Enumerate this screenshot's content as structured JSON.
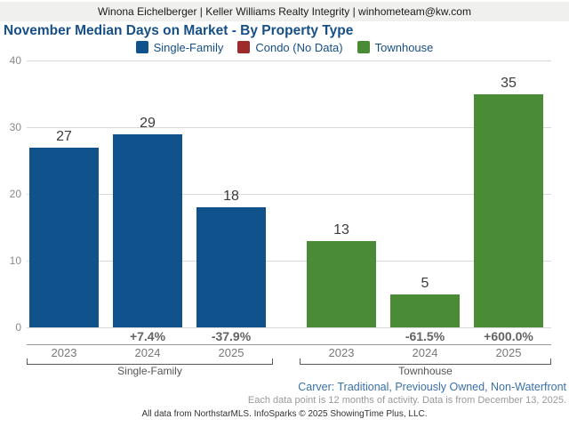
{
  "header": {
    "contact": "Winona Eichelberger | Keller Williams Realty Integrity | winhometeam@kw.com"
  },
  "chart_data": {
    "type": "bar",
    "title": "November Median Days on Market - By Property Type",
    "ylabel": "",
    "xlabel": "",
    "ylim": [
      0,
      40
    ],
    "yticks": [
      0,
      10,
      20,
      30,
      40
    ],
    "grid": true,
    "legend_position": "top-center",
    "legend": [
      {
        "label": "Single-Family",
        "color": "#0f528c"
      },
      {
        "label": "Condo (No Data)",
        "color": "#9e2a2b"
      },
      {
        "label": "Townhouse",
        "color": "#4a8c35"
      }
    ],
    "groups": [
      {
        "name": "Single-Family",
        "color": "#0f528c",
        "categories": [
          "2023",
          "2024",
          "2025"
        ],
        "values": [
          27,
          29,
          18
        ],
        "pct_change": [
          "",
          "+7.4%",
          "-37.9%"
        ]
      },
      {
        "name": "Townhouse",
        "color": "#4a8c35",
        "categories": [
          "2023",
          "2024",
          "2025"
        ],
        "values": [
          13,
          5,
          35
        ],
        "pct_change": [
          "",
          "-61.5%",
          "+600.0%"
        ]
      }
    ]
  },
  "footer": {
    "filters": "Carver: Traditional, Previously Owned, Non-Waterfront",
    "data_note": "Each data point is 12 months of activity. Data is from December 13, 2025.",
    "attribution": "All data from NorthstarMLS. InfoSparks © 2025 ShowingTime Plus, LLC."
  }
}
